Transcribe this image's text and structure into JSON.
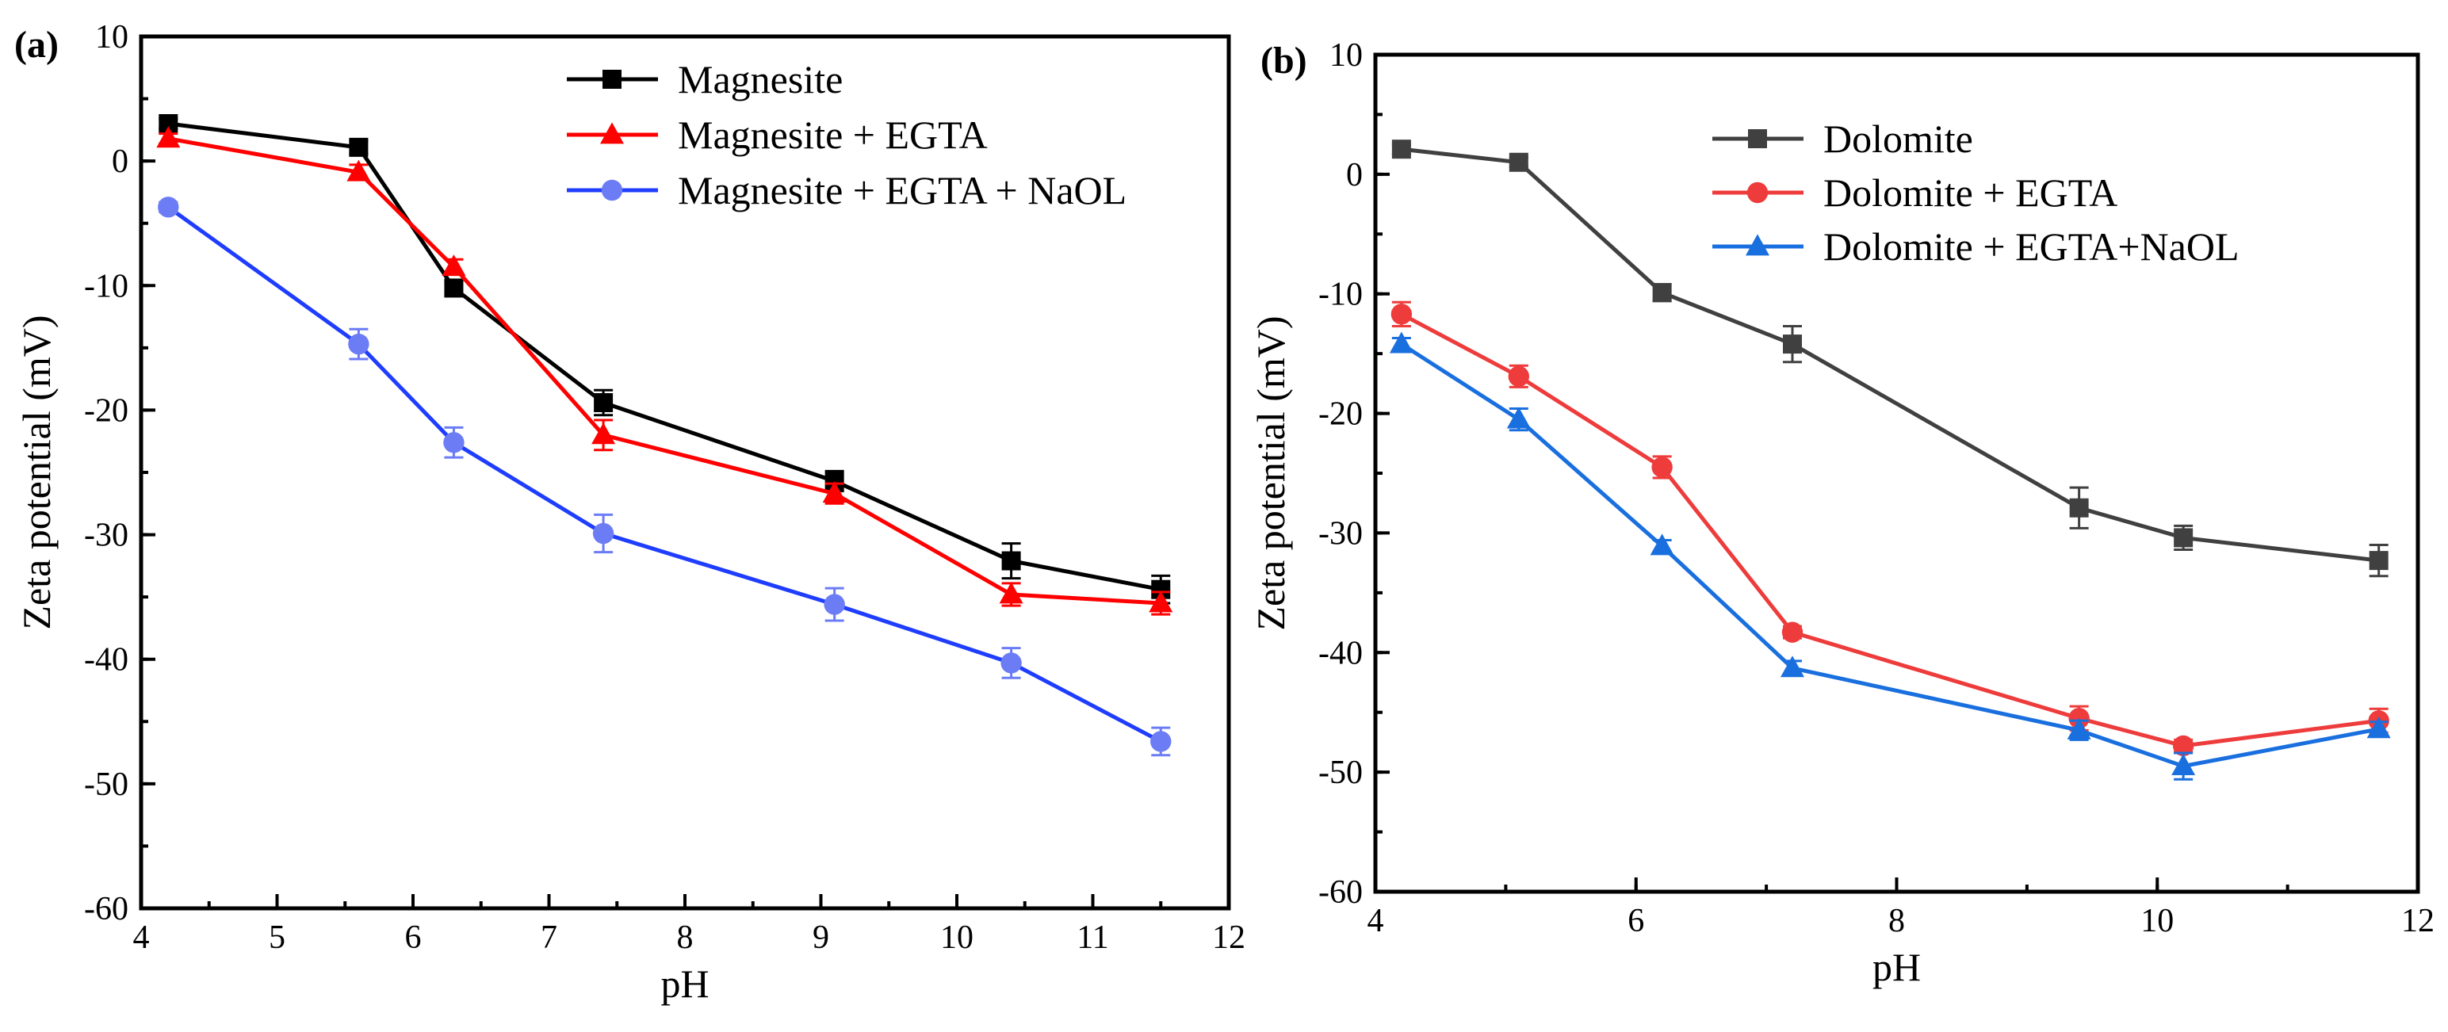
{
  "chart_data": [
    {
      "type": "line",
      "panel_label": "(a)",
      "xlabel": "pH",
      "ylabel": "Zeta potential (mV)",
      "xlim": [
        4,
        12
      ],
      "ylim": [
        -60,
        10
      ],
      "xticks": [
        4,
        5,
        6,
        7,
        8,
        9,
        10,
        11,
        12
      ],
      "yticks": [
        10,
        0,
        -10,
        -20,
        -30,
        -40,
        -50,
        -60
      ],
      "legend_position": "top-right",
      "grid": false,
      "series": [
        {
          "name": "Magnesite",
          "color": "#000000",
          "marker_color": "#000000",
          "marker": "square",
          "x": [
            4.2,
            5.6,
            6.3,
            7.4,
            9.1,
            10.4,
            11.5
          ],
          "y": [
            3.0,
            1.1,
            -10.2,
            -19.4,
            -25.7,
            -32.1,
            -34.4
          ],
          "yerr": [
            0.4,
            0.5,
            0.6,
            1.0,
            0.8,
            1.4,
            1.1
          ]
        },
        {
          "name": "Magnesite + EGTA",
          "color": "#ff0000",
          "marker_color": "#ff0000",
          "marker": "triangle",
          "x": [
            4.2,
            5.6,
            6.3,
            7.4,
            9.1,
            10.4,
            11.5
          ],
          "y": [
            1.8,
            -0.9,
            -8.5,
            -22.0,
            -26.7,
            -34.8,
            -35.5
          ],
          "yerr": [
            0.4,
            0.6,
            0.6,
            1.2,
            0.8,
            0.9,
            0.9
          ]
        },
        {
          "name": "Magnesite + EGTA + NaOL",
          "color": "#1f3dff",
          "marker_color": "#6b7cf5",
          "marker": "circle",
          "x": [
            4.2,
            5.6,
            6.3,
            7.4,
            9.1,
            10.4,
            11.5
          ],
          "y": [
            -3.7,
            -14.7,
            -22.6,
            -29.9,
            -35.6,
            -40.3,
            -46.6
          ],
          "yerr": [
            0.4,
            1.2,
            1.2,
            1.5,
            1.3,
            1.2,
            1.1
          ]
        }
      ]
    },
    {
      "type": "line",
      "panel_label": "(b)",
      "xlabel": "pH",
      "ylabel": "Zeta potential (mV)",
      "xlim": [
        4,
        12
      ],
      "ylim": [
        -60,
        10
      ],
      "xticks": [
        4,
        6,
        8,
        10,
        12
      ],
      "yticks": [
        10,
        0,
        -10,
        -20,
        -30,
        -40,
        -50,
        -60
      ],
      "legend_position": "top-center",
      "grid": false,
      "series": [
        {
          "name": "Dolomite",
          "color": "#404040",
          "marker_color": "#404040",
          "marker": "square",
          "x": [
            4.2,
            5.1,
            6.2,
            7.2,
            9.4,
            10.2,
            11.7
          ],
          "y": [
            2.1,
            1.0,
            -9.9,
            -14.2,
            -27.9,
            -30.4,
            -32.3
          ],
          "yerr": [
            0.4,
            0.4,
            0.7,
            1.5,
            1.7,
            1.0,
            1.3
          ]
        },
        {
          "name": "Dolomite + EGTA",
          "color": "#ee3b3b",
          "marker_color": "#ee3b3b",
          "marker": "circle",
          "x": [
            4.2,
            5.1,
            6.2,
            7.2,
            9.4,
            10.2,
            11.7
          ],
          "y": [
            -11.7,
            -16.9,
            -24.5,
            -38.3,
            -45.5,
            -47.8,
            -45.7
          ],
          "yerr": [
            1.0,
            0.9,
            0.9,
            0.5,
            1.0,
            0.5,
            1.0
          ]
        },
        {
          "name": "Dolomite + EGTA+NaOL",
          "color": "#1a6fdf",
          "marker_color": "#1a6fdf",
          "marker": "triangle",
          "x": [
            4.2,
            5.1,
            6.2,
            7.2,
            9.4,
            10.2,
            11.7
          ],
          "y": [
            -14.2,
            -20.5,
            -31.1,
            -41.3,
            -46.5,
            -49.5,
            -46.4
          ],
          "yerr": [
            0.5,
            0.9,
            0.5,
            0.6,
            0.8,
            1.1,
            0.6
          ]
        }
      ]
    }
  ]
}
